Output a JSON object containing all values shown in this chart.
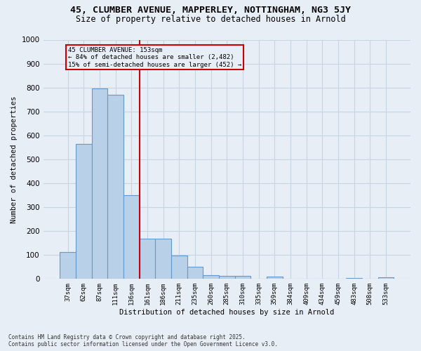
{
  "title_line1": "45, CLUMBER AVENUE, MAPPERLEY, NOTTINGHAM, NG3 5JY",
  "title_line2": "Size of property relative to detached houses in Arnold",
  "xlabel": "Distribution of detached houses by size in Arnold",
  "ylabel": "Number of detached properties",
  "categories": [
    "37sqm",
    "62sqm",
    "87sqm",
    "111sqm",
    "136sqm",
    "161sqm",
    "186sqm",
    "211sqm",
    "235sqm",
    "260sqm",
    "285sqm",
    "310sqm",
    "335sqm",
    "359sqm",
    "384sqm",
    "409sqm",
    "434sqm",
    "459sqm",
    "483sqm",
    "508sqm",
    "533sqm"
  ],
  "values": [
    113,
    563,
    795,
    770,
    350,
    168,
    168,
    97,
    52,
    15,
    12,
    12,
    0,
    10,
    0,
    0,
    0,
    0,
    5,
    0,
    8
  ],
  "bar_color": "#b8d0e8",
  "bar_edge_color": "#6699cc",
  "grid_color": "#c8d4e4",
  "bg_color": "#e8eef6",
  "vline_x": 4.5,
  "vline_color": "#cc0000",
  "annotation_text": "45 CLUMBER AVENUE: 153sqm\n← 84% of detached houses are smaller (2,482)\n15% of semi-detached houses are larger (452) →",
  "annotation_box_color": "#cc0000",
  "footer_line1": "Contains HM Land Registry data © Crown copyright and database right 2025.",
  "footer_line2": "Contains public sector information licensed under the Open Government Licence v3.0.",
  "ylim": [
    0,
    1000
  ],
  "yticks": [
    0,
    100,
    200,
    300,
    400,
    500,
    600,
    700,
    800,
    900,
    1000
  ]
}
